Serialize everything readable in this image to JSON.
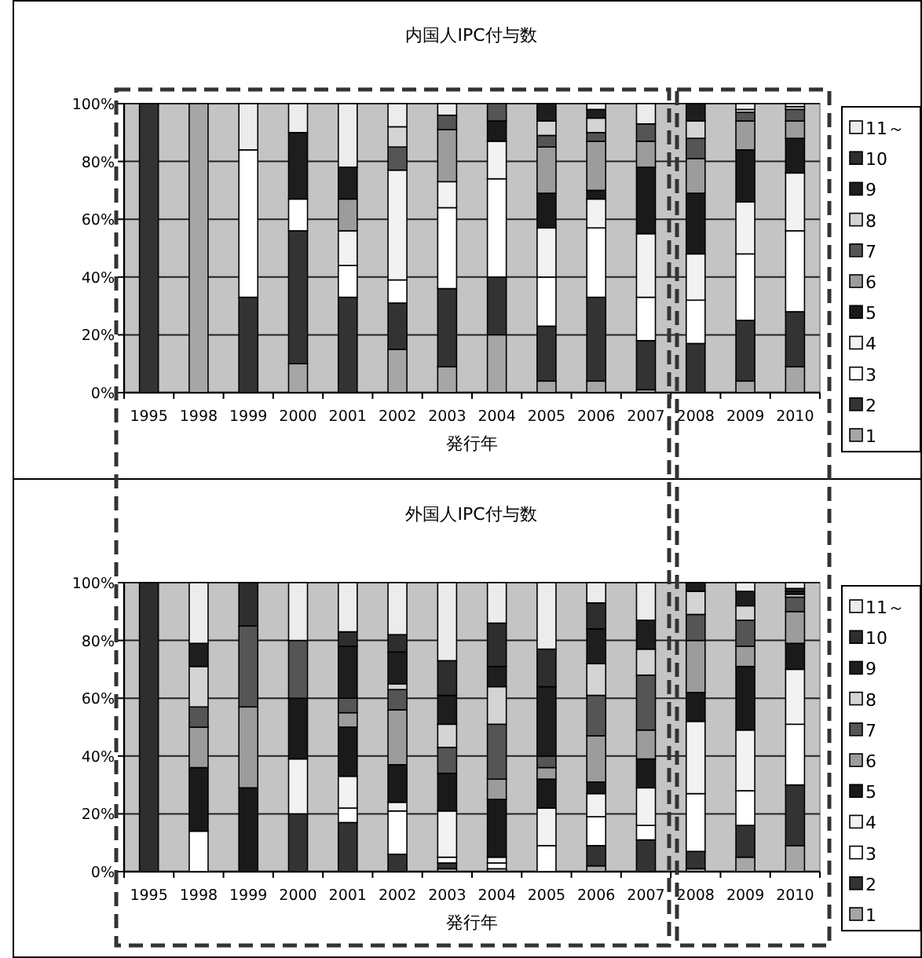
{
  "chart_data": [
    {
      "type": "bar",
      "title": "内国人IPC付与数",
      "xlabel": "発行年",
      "categories": [
        "1995",
        "1998",
        "1999",
        "2000",
        "2001",
        "2002",
        "2003",
        "2004",
        "2005",
        "2006",
        "2007",
        "2008",
        "2009",
        "2010"
      ],
      "stacked": true,
      "ylim": [
        0,
        100
      ],
      "yticks": [
        {
          "value": 0,
          "label": "0%"
        },
        {
          "value": 20,
          "label": "20%"
        },
        {
          "value": 40,
          "label": "40%"
        },
        {
          "value": 60,
          "label": "60%"
        },
        {
          "value": 80,
          "label": "80%"
        },
        {
          "value": 100,
          "label": "100%"
        }
      ],
      "grid": "y",
      "legend": "right",
      "series": [
        {
          "name": "1",
          "color": "#a6a6a6",
          "values": [
            null,
            100,
            null,
            10,
            null,
            15,
            9,
            20,
            4,
            4,
            1,
            null,
            4,
            9
          ]
        },
        {
          "name": "2",
          "color": "#333333",
          "values": [
            100,
            null,
            33,
            46,
            33,
            16,
            27,
            20,
            19,
            29,
            17,
            17,
            21,
            19
          ]
        },
        {
          "name": "3",
          "color": "#ffffff",
          "values": [
            null,
            null,
            51,
            11,
            11,
            8,
            28,
            34,
            17,
            24,
            15,
            15,
            23,
            28
          ]
        },
        {
          "name": "4",
          "color": "#f2f2f2",
          "values": [
            null,
            null,
            null,
            null,
            12,
            38,
            9,
            13,
            17,
            10,
            22,
            16,
            18,
            20
          ]
        },
        {
          "name": "5",
          "color": "#1a1a1a",
          "values": [
            null,
            null,
            null,
            null,
            null,
            null,
            null,
            7,
            12,
            3,
            23,
            21,
            18,
            12
          ]
        },
        {
          "name": "6",
          "color": "#9c9c9c",
          "values": [
            null,
            null,
            null,
            null,
            11,
            null,
            18,
            null,
            16,
            17,
            9,
            12,
            10,
            6
          ]
        },
        {
          "name": "7",
          "color": "#555555",
          "values": [
            null,
            null,
            null,
            null,
            null,
            8,
            5,
            6,
            4,
            3,
            6,
            7,
            3,
            4
          ]
        },
        {
          "name": "8",
          "color": "#d4d4d4",
          "values": [
            null,
            null,
            null,
            null,
            null,
            7,
            null,
            null,
            5,
            5,
            null,
            6,
            1,
            1
          ]
        },
        {
          "name": "9",
          "color": "#1e1e1e",
          "values": [
            null,
            null,
            null,
            23,
            11,
            null,
            null,
            null,
            6,
            3,
            null,
            6,
            null,
            null
          ]
        },
        {
          "name": "10",
          "color": "#2e2e2e",
          "values": [
            null,
            null,
            null,
            null,
            null,
            null,
            null,
            null,
            null,
            null,
            null,
            null,
            null,
            null
          ]
        },
        {
          "name": "11～",
          "color": "#ececec",
          "values": [
            null,
            null,
            16,
            10,
            22,
            8,
            4,
            null,
            null,
            2,
            7,
            null,
            2,
            1
          ]
        }
      ]
    },
    {
      "type": "bar",
      "title": "外国人IPC付与数",
      "xlabel": "発行年",
      "categories": [
        "1995",
        "1998",
        "1999",
        "2000",
        "2001",
        "2002",
        "2003",
        "2004",
        "2005",
        "2006",
        "2007",
        "2008",
        "2009",
        "2010"
      ],
      "stacked": true,
      "ylim": [
        0,
        100
      ],
      "yticks": [
        {
          "value": 0,
          "label": "0%"
        },
        {
          "value": 20,
          "label": "20%"
        },
        {
          "value": 40,
          "label": "40%"
        },
        {
          "value": 60,
          "label": "60%"
        },
        {
          "value": 80,
          "label": "80%"
        },
        {
          "value": 100,
          "label": "100%"
        }
      ],
      "grid": "y",
      "legend": "right",
      "series": [
        {
          "name": "1",
          "color": "#a6a6a6",
          "values": [
            null,
            null,
            null,
            null,
            null,
            null,
            1,
            1,
            null,
            2,
            null,
            1,
            5,
            9
          ]
        },
        {
          "name": "2",
          "color": "#333333",
          "values": [
            null,
            null,
            null,
            20,
            17,
            6,
            2,
            null,
            null,
            7,
            11,
            6,
            11,
            21
          ]
        },
        {
          "name": "3",
          "color": "#ffffff",
          "values": [
            null,
            14,
            null,
            null,
            5,
            15,
            2,
            2,
            9,
            10,
            5,
            20,
            12,
            21
          ]
        },
        {
          "name": "4",
          "color": "#f2f2f2",
          "values": [
            null,
            null,
            null,
            19,
            11,
            3,
            16,
            2,
            13,
            8,
            13,
            25,
            21,
            19
          ]
        },
        {
          "name": "5",
          "color": "#1a1a1a",
          "values": [
            null,
            22,
            29,
            21,
            17,
            13,
            13,
            20,
            10,
            4,
            10,
            10,
            22,
            9
          ]
        },
        {
          "name": "6",
          "color": "#9c9c9c",
          "values": [
            null,
            14,
            28,
            null,
            5,
            19,
            null,
            7,
            4,
            16,
            10,
            18,
            7,
            11
          ]
        },
        {
          "name": "7",
          "color": "#555555",
          "values": [
            null,
            7,
            28,
            20,
            5,
            7,
            9,
            19,
            4,
            14,
            19,
            9,
            9,
            5
          ]
        },
        {
          "name": "8",
          "color": "#d4d4d4",
          "values": [
            null,
            14,
            null,
            null,
            null,
            2,
            8,
            13,
            null,
            11,
            9,
            8,
            5,
            1
          ]
        },
        {
          "name": "9",
          "color": "#1e1e1e",
          "values": [
            null,
            8,
            null,
            null,
            18,
            11,
            10,
            7,
            24,
            12,
            10,
            3,
            5,
            1
          ]
        },
        {
          "name": "10",
          "color": "#2e2e2e",
          "values": [
            100,
            null,
            15,
            null,
            5,
            6,
            12,
            15,
            13,
            9,
            null,
            null,
            null,
            1
          ]
        },
        {
          "name": "11～",
          "color": "#ececec",
          "values": [
            null,
            21,
            null,
            20,
            17,
            18,
            27,
            14,
            23,
            7,
            13,
            null,
            3,
            2
          ]
        }
      ]
    }
  ]
}
